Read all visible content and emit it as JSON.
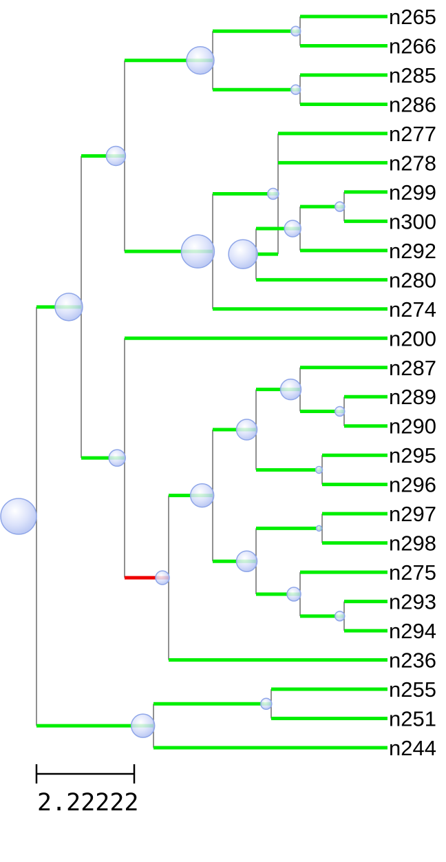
{
  "tree": {
    "leaves": [
      {
        "id": "L0",
        "label": "n265"
      },
      {
        "id": "L1",
        "label": "n266"
      },
      {
        "id": "L2",
        "label": "n285"
      },
      {
        "id": "L3",
        "label": "n286"
      },
      {
        "id": "L4",
        "label": "n277"
      },
      {
        "id": "L5",
        "label": "n278"
      },
      {
        "id": "L6",
        "label": "n299"
      },
      {
        "id": "L7",
        "label": "n300"
      },
      {
        "id": "L8",
        "label": "n292"
      },
      {
        "id": "L9",
        "label": "n280"
      },
      {
        "id": "L10",
        "label": "n274"
      },
      {
        "id": "L11",
        "label": "n200"
      },
      {
        "id": "L12",
        "label": "n287"
      },
      {
        "id": "L13",
        "label": "n289"
      },
      {
        "id": "L14",
        "label": "n290"
      },
      {
        "id": "L15",
        "label": "n295"
      },
      {
        "id": "L16",
        "label": "n296"
      },
      {
        "id": "L17",
        "label": "n297"
      },
      {
        "id": "L18",
        "label": "n298"
      },
      {
        "id": "L19",
        "label": "n275"
      },
      {
        "id": "L20",
        "label": "n293"
      },
      {
        "id": "L21",
        "label": "n294"
      },
      {
        "id": "L22",
        "label": "n236"
      },
      {
        "id": "L23",
        "label": "n255"
      },
      {
        "id": "L24",
        "label": "n251"
      },
      {
        "id": "L25",
        "label": "n244"
      }
    ],
    "internal_nodes": [
      {
        "id": "root",
        "parent": null,
        "branch_color": "none"
      },
      {
        "id": "A",
        "parent": "root",
        "branch_color": "#00ee00"
      },
      {
        "id": "B",
        "parent": "A",
        "branch_color": "#00ee00"
      },
      {
        "id": "C",
        "parent": "B",
        "branch_color": "#00ee00"
      },
      {
        "id": "D",
        "parent": "C",
        "branch_color": "#00ee00"
      },
      {
        "id": "E",
        "parent": "C",
        "branch_color": "#00ee00"
      },
      {
        "id": "F",
        "parent": "B",
        "branch_color": "#00ee00"
      },
      {
        "id": "G",
        "parent": "F",
        "branch_color": "#00ee00"
      },
      {
        "id": "H",
        "parent": "G",
        "branch_color": "#00ee00"
      },
      {
        "id": "I",
        "parent": "H",
        "branch_color": "#00ee00"
      },
      {
        "id": "J",
        "parent": "I",
        "branch_color": "#00ee00"
      },
      {
        "id": "K",
        "parent": "A",
        "branch_color": "#00ee00"
      },
      {
        "id": "M",
        "parent": "K",
        "branch_color": "#ee0000"
      },
      {
        "id": "N",
        "parent": "M",
        "branch_color": "#00ee00"
      },
      {
        "id": "O",
        "parent": "N",
        "branch_color": "#00ee00"
      },
      {
        "id": "P",
        "parent": "O",
        "branch_color": "#00ee00"
      },
      {
        "id": "Q",
        "parent": "P",
        "branch_color": "#00ee00"
      },
      {
        "id": "R",
        "parent": "O",
        "branch_color": "#00ee00"
      },
      {
        "id": "S",
        "parent": "N",
        "branch_color": "#00ee00"
      },
      {
        "id": "T",
        "parent": "S",
        "branch_color": "#00ee00"
      },
      {
        "id": "U",
        "parent": "S",
        "branch_color": "#00ee00"
      },
      {
        "id": "V",
        "parent": "U",
        "branch_color": "#00ee00"
      },
      {
        "id": "W",
        "parent": "root",
        "branch_color": "#00ee00"
      },
      {
        "id": "X",
        "parent": "W",
        "branch_color": "#00ee00"
      }
    ],
    "leaf_parents": {
      "L0": "D",
      "L1": "D",
      "L2": "E",
      "L3": "E",
      "L4": "G",
      "L5": "G",
      "L6": "J",
      "L7": "J",
      "L8": "I",
      "L9": "H",
      "L10": "F",
      "L11": "K",
      "L12": "P",
      "L13": "Q",
      "L14": "Q",
      "L15": "R",
      "L16": "R",
      "L17": "T",
      "L18": "T",
      "L19": "U",
      "L20": "V",
      "L21": "V",
      "L22": "M",
      "L23": "X",
      "L24": "X",
      "L25": "W"
    },
    "colors": {
      "branch_green": "#00ee00",
      "branch_red": "#ee0000",
      "connector": "#555555",
      "node_fill": "#c8d4f8",
      "node_stroke": "#8fa6e8"
    }
  },
  "scale_bar": {
    "label": "2.22222"
  }
}
